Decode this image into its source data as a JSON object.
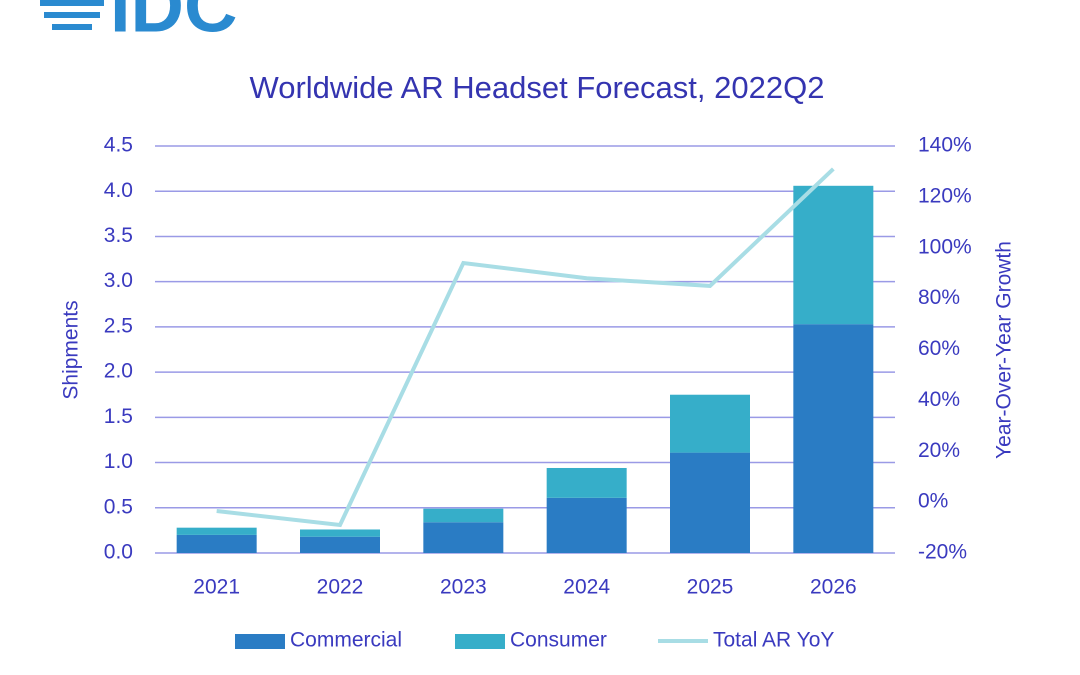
{
  "logo": "IDC",
  "chart_data": {
    "type": "bar",
    "stacked": true,
    "title": "Worldwide AR Headset Forecast, 2022Q2",
    "y_label": "Shipments",
    "y2_label": "Year-Over-Year Growth",
    "categories": [
      "2021",
      "2022",
      "2023",
      "2024",
      "2025",
      "2026"
    ],
    "series": [
      {
        "name": "Commercial",
        "color": "#2a7cc4",
        "type": "bar",
        "values": [
          0.2,
          0.18,
          0.34,
          0.61,
          1.11,
          2.53
        ]
      },
      {
        "name": "Consumer",
        "color": "#36aec9",
        "type": "bar",
        "values": [
          0.08,
          0.08,
          0.15,
          0.33,
          0.64,
          1.53
        ]
      },
      {
        "name": "Total AR YoY",
        "color": "#a8dde5",
        "type": "line",
        "axis": "y2",
        "values": [
          -3.5,
          -9,
          94,
          88,
          85,
          131
        ]
      }
    ],
    "ylim": [
      0,
      4.5
    ],
    "yticks": [
      {
        "value": 0,
        "label": "0.0"
      },
      0.5,
      {
        "value": 1,
        "label": "1.0"
      },
      1.5,
      {
        "value": 2,
        "label": "2.0"
      },
      2.5,
      {
        "value": 3,
        "label": "3.0"
      },
      3.5,
      {
        "value": 4,
        "label": "4.0"
      },
      4.5
    ],
    "y2lim": [
      -20,
      140
    ],
    "y2ticks": [
      {
        "value": -20,
        "label": "-20%"
      },
      {
        "value": 0,
        "label": "0%"
      },
      {
        "value": 20,
        "label": "20%"
      },
      {
        "value": 40,
        "label": "40%"
      },
      {
        "value": 60,
        "label": "60%"
      },
      {
        "value": 80,
        "label": "80%"
      },
      {
        "value": 100,
        "label": "100%"
      },
      {
        "value": 120,
        "label": "120%"
      },
      {
        "value": 140,
        "label": "140%"
      }
    ],
    "grid": true,
    "legend": "bottom"
  }
}
